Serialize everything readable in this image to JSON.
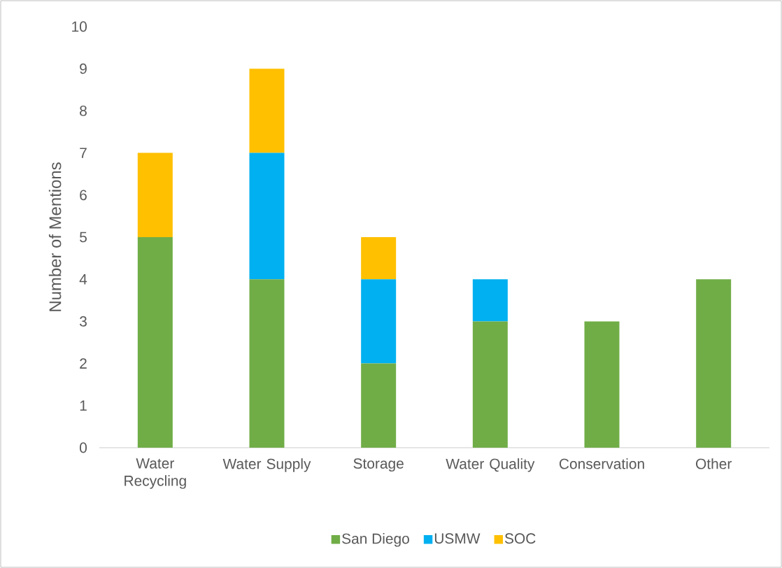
{
  "chart_data": {
    "type": "bar",
    "stacked": true,
    "ylabel": "Number of Mentions",
    "categories": [
      "Water Recycling",
      "Water Supply",
      "Storage",
      "Water Quality",
      "Conservation",
      "Other"
    ],
    "series": [
      {
        "name": "San Diego",
        "color": "#70ad47",
        "values": [
          5,
          4,
          2,
          3,
          3,
          4
        ]
      },
      {
        "name": "USMW",
        "color": "#00b0f0",
        "values": [
          0,
          3,
          2,
          1,
          0,
          0
        ]
      },
      {
        "name": "SOC",
        "color": "#ffc000",
        "values": [
          2,
          2,
          1,
          0,
          0,
          0
        ]
      }
    ],
    "ylim": [
      0,
      10
    ],
    "yticks": [
      0,
      1,
      2,
      3,
      4,
      5,
      6,
      7,
      8,
      9,
      10
    ],
    "legend": "bottom"
  }
}
